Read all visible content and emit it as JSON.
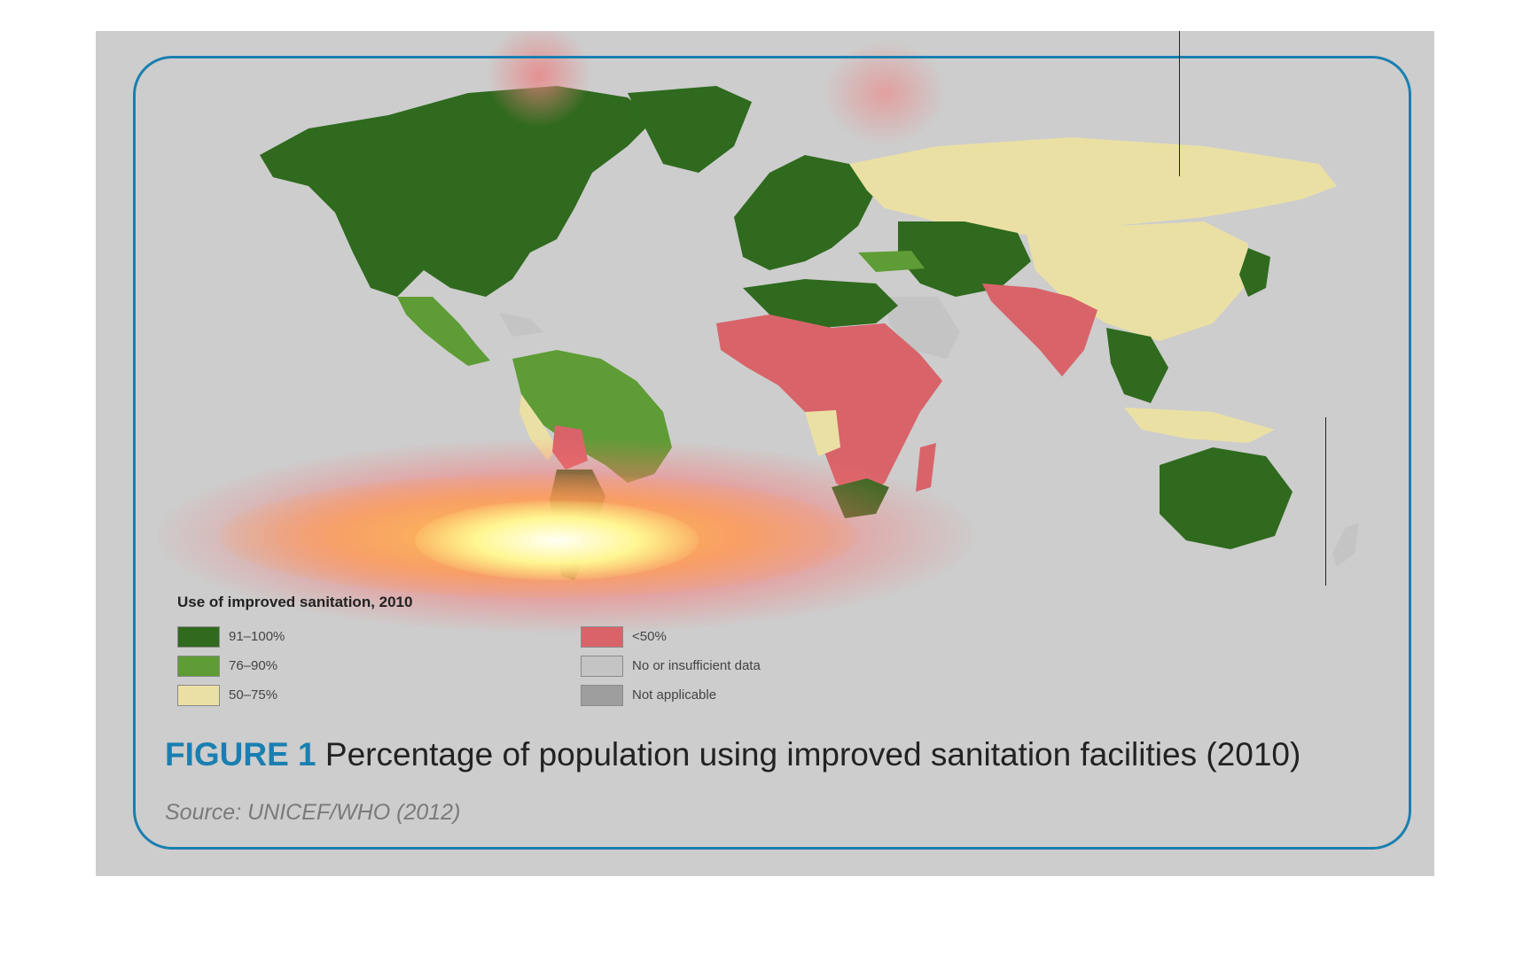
{
  "legend": {
    "title": "Use of improved sanitation, 2010",
    "items": [
      {
        "label": "91–100%",
        "color": "#2f6a1e"
      },
      {
        "label": "76–90%",
        "color": "#5e9c35"
      },
      {
        "label": "50–75%",
        "color": "#ebe0a4"
      },
      {
        "label": "<50%",
        "color": "#d8646a"
      },
      {
        "label": "No or insufficient data",
        "color": "#c4c4c4"
      },
      {
        "label": "Not applicable",
        "color": "#9e9e9e"
      }
    ]
  },
  "caption": {
    "figure_number": "FIGURE 1",
    "text": "Percentage of population using improved sanitation facilities (2010)"
  },
  "source": "Source: UNICEF/WHO (2012)",
  "colors": {
    "frame": "#1a7fb0",
    "background": "#cdcdcd"
  }
}
